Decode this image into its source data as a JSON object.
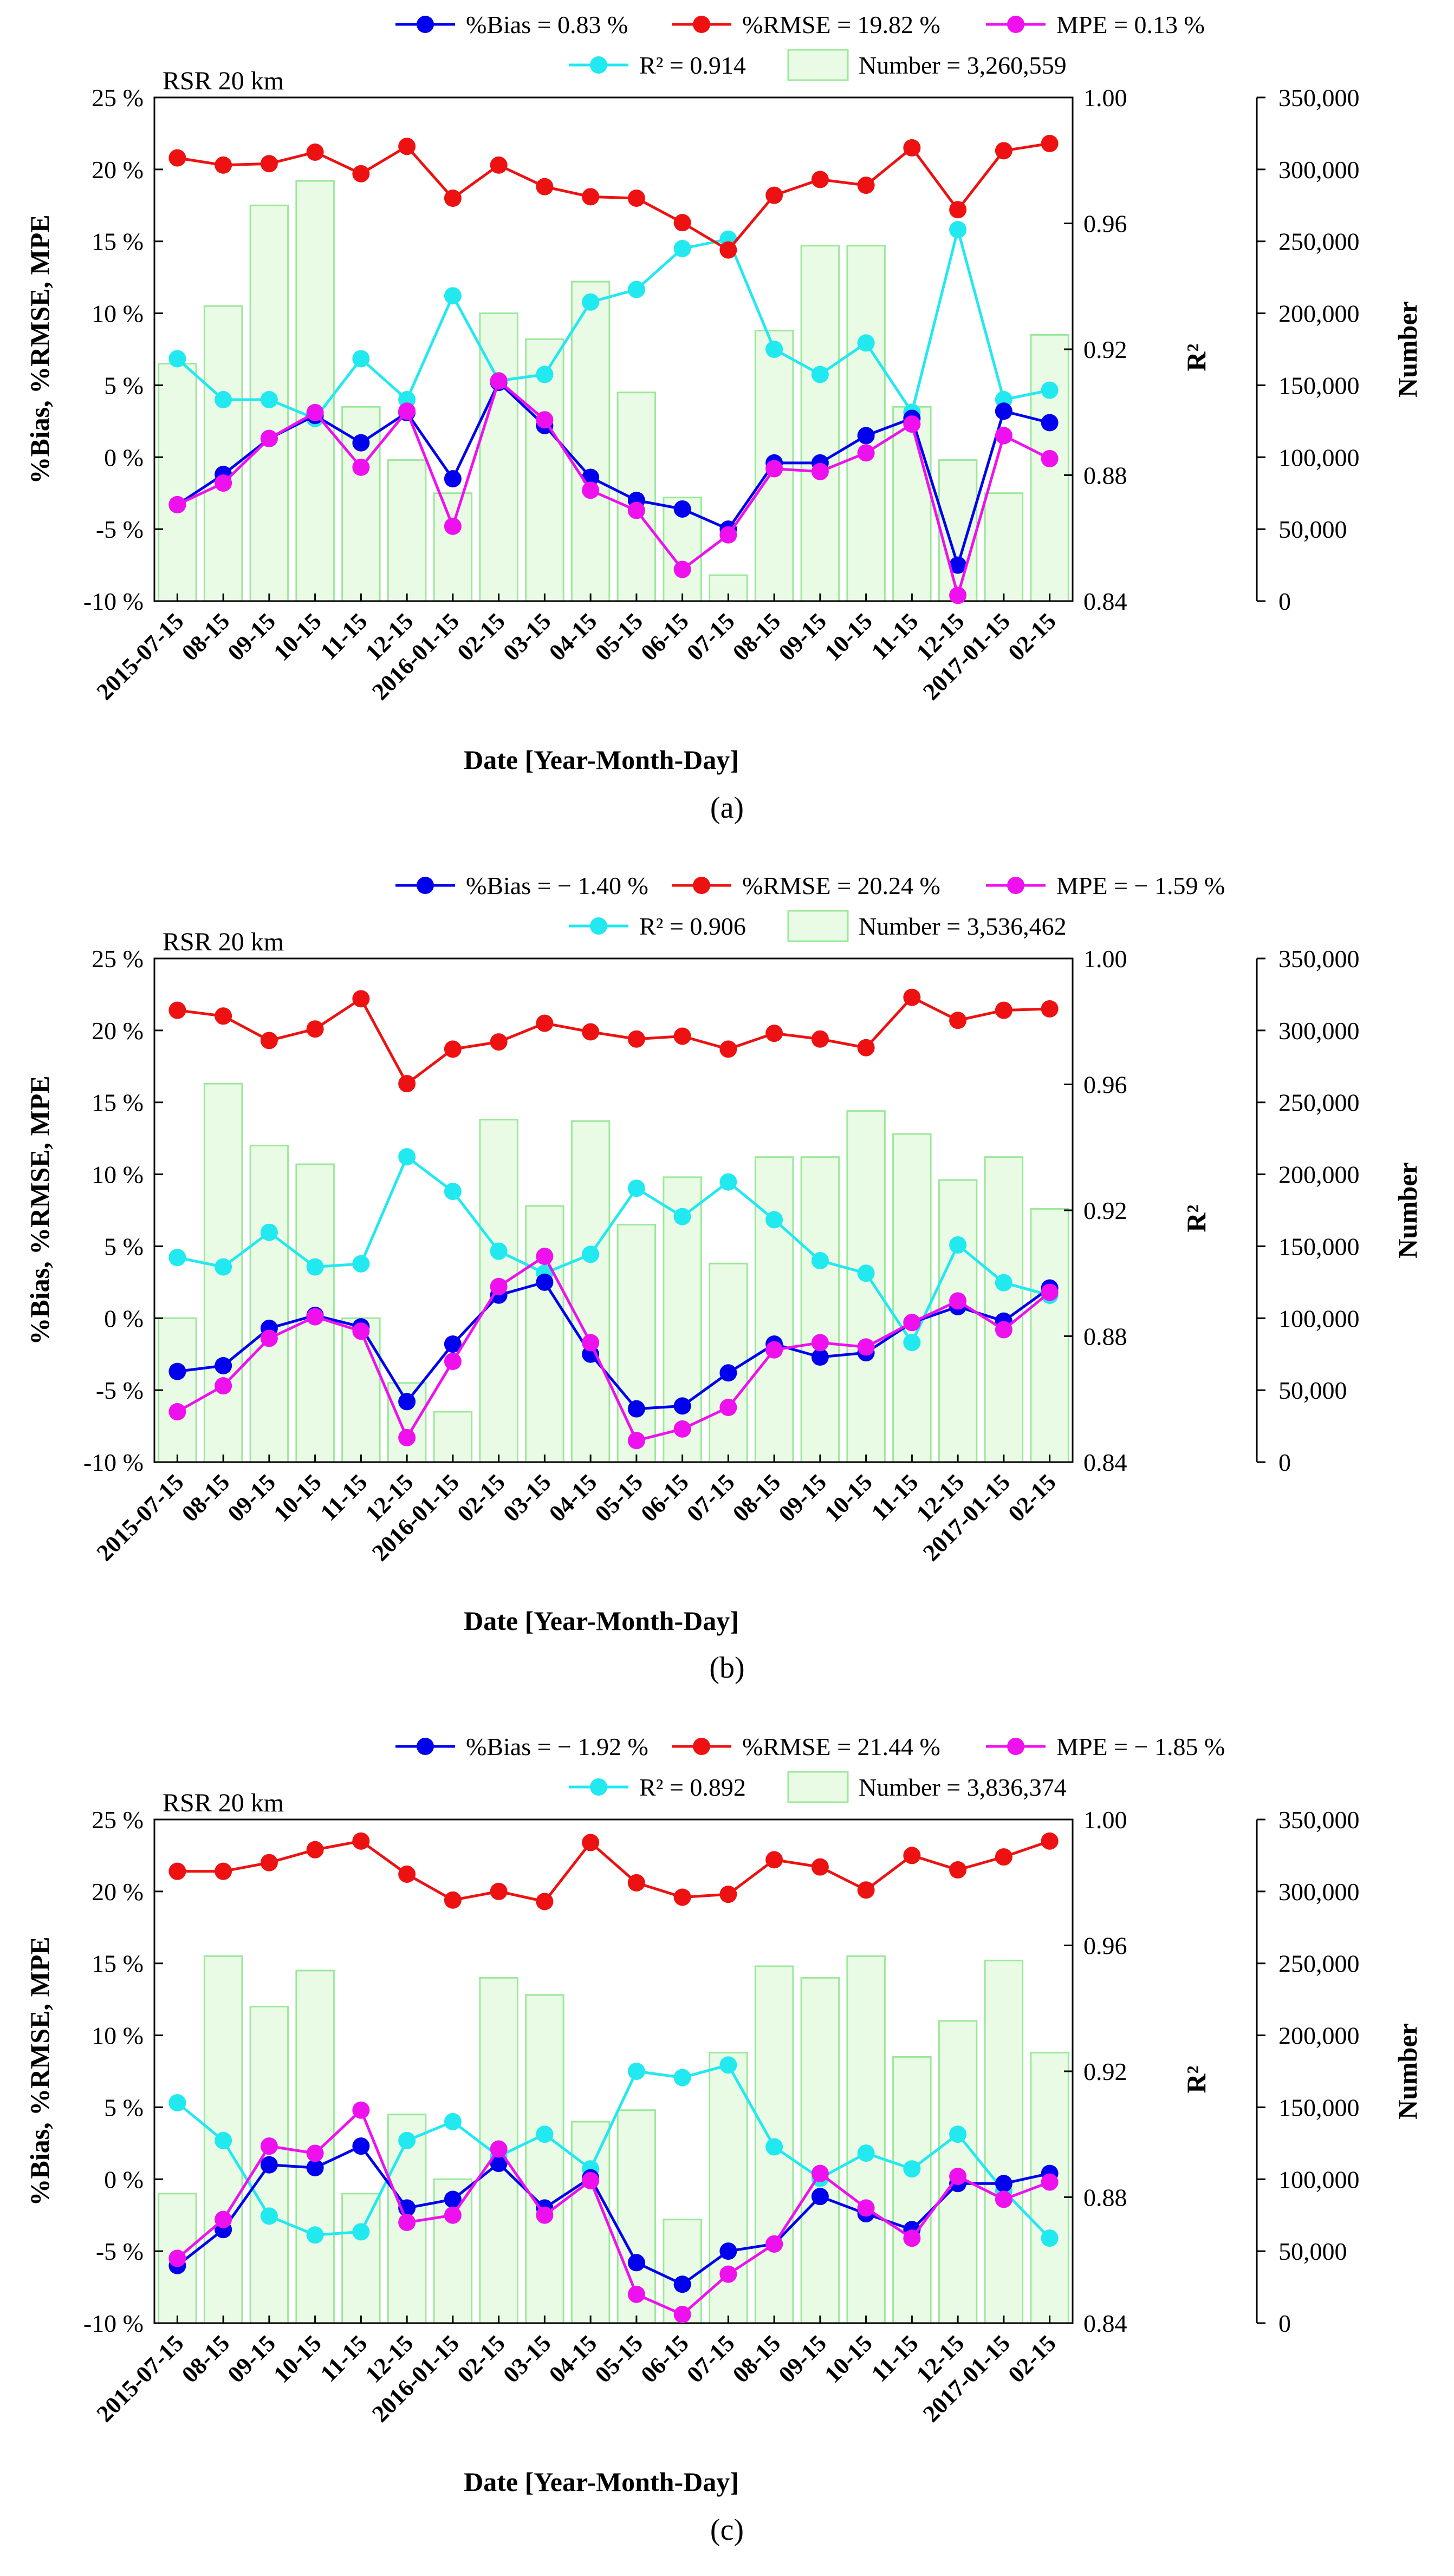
{
  "chart_data": [
    {
      "type": "line",
      "panel_label": "a",
      "annotation": "RSR  20 km",
      "legend": {
        "bias": "%Bias = 0.83 %",
        "rmse": "%RMSE = 19.82 %",
        "mpe": "MPE = 0.13 %",
        "r2": "R² = 0.914",
        "number": "Number = 3,260,559"
      },
      "xlabel": "Date  [Year-Month-Day]",
      "ylabel_left": "%Bias,  %RMSE,  MPE",
      "ylabel_r2": "R²",
      "ylabel_number": "Number",
      "categories": [
        "2015-07-15",
        "08-15",
        "09-15",
        "10-15",
        "11-15",
        "12-15",
        "2016-01-15",
        "02-15",
        "03-15",
        "04-15",
        "05-15",
        "06-15",
        "07-15",
        "08-15",
        "09-15",
        "10-15",
        "11-15",
        "12-15",
        "2017-01-15",
        "02-15"
      ],
      "left_ticks": [
        "-10 %",
        "-5 %",
        "0 %",
        "5 %",
        "10 %",
        "15 %",
        "20 %",
        "25 %"
      ],
      "r2_ticks": [
        "0.84",
        "0.88",
        "0.92",
        "0.96",
        "1.00"
      ],
      "number_ticks": [
        "0",
        "50,000",
        "100,000",
        "150,000",
        "200,000",
        "250,000",
        "300,000",
        "350,000"
      ],
      "ylim_left": [
        -10,
        25
      ],
      "ylim_r2": [
        0.84,
        1.0
      ],
      "ylim_number": [
        0,
        350000
      ],
      "colors": {
        "bias": "#0000ee",
        "rmse": "#ee1111",
        "mpe": "#ee11ee",
        "r2": "#22e8f0",
        "bars_edge": "#9be89b",
        "bars_fill": "#e9fbe4"
      },
      "series": [
        {
          "name": "%Bias",
          "axis": "left",
          "values": [
            -3.3,
            -1.2,
            1.3,
            2.9,
            1.0,
            3.1,
            -1.5,
            5.2,
            2.2,
            -1.4,
            -3.0,
            -3.6,
            -5.0,
            -0.4,
            -0.4,
            1.5,
            2.7,
            -7.5,
            3.2,
            2.4
          ]
        },
        {
          "name": "%RMSE",
          "axis": "left",
          "values": [
            20.8,
            20.3,
            20.4,
            21.2,
            19.7,
            21.6,
            18.0,
            20.3,
            18.8,
            18.1,
            18.0,
            16.3,
            14.4,
            18.2,
            19.3,
            18.9,
            21.5,
            17.2,
            21.3,
            21.8
          ]
        },
        {
          "name": "MPE",
          "axis": "left",
          "values": [
            -3.3,
            -1.8,
            1.3,
            3.1,
            -0.7,
            3.2,
            -4.8,
            5.3,
            2.6,
            -2.3,
            -3.7,
            -7.8,
            -5.4,
            -0.8,
            -1.0,
            0.3,
            2.3,
            -9.6,
            1.5,
            -0.1
          ]
        },
        {
          "name": "R²",
          "axis": "r2",
          "values": [
            0.917,
            0.904,
            0.904,
            0.898,
            0.917,
            0.904,
            0.937,
            0.91,
            0.912,
            0.935,
            0.939,
            0.952,
            0.955,
            0.92,
            0.912,
            0.922,
            0.9,
            0.958,
            0.904,
            0.907
          ]
        },
        {
          "name": "Number",
          "axis": "number",
          "type": "bar",
          "values": [
            165000,
            205000,
            275000,
            292000,
            135000,
            98000,
            75000,
            200000,
            182000,
            222000,
            145000,
            72000,
            18000,
            188000,
            247000,
            247000,
            135000,
            98000,
            75000,
            185000
          ]
        }
      ]
    },
    {
      "type": "line",
      "panel_label": "b",
      "annotation": "RSR  20 km",
      "legend": {
        "bias": "%Bias = − 1.40 %",
        "rmse": "%RMSE = 20.24 %",
        "mpe": "MPE = − 1.59 %",
        "r2": "R² = 0.906",
        "number": "Number = 3,536,462"
      },
      "xlabel": "Date  [Year-Month-Day]",
      "ylabel_left": "%Bias,  %RMSE,  MPE",
      "ylabel_r2": "R²",
      "ylabel_number": "Number",
      "categories": [
        "2015-07-15",
        "08-15",
        "09-15",
        "10-15",
        "11-15",
        "12-15",
        "2016-01-15",
        "02-15",
        "03-15",
        "04-15",
        "05-15",
        "06-15",
        "07-15",
        "08-15",
        "09-15",
        "10-15",
        "11-15",
        "12-15",
        "2017-01-15",
        "02-15"
      ],
      "left_ticks": [
        "-10 %",
        "-5 %",
        "0 %",
        "5 %",
        "10 %",
        "15 %",
        "20 %",
        "25 %"
      ],
      "r2_ticks": [
        "0.84",
        "0.88",
        "0.92",
        "0.96",
        "1.00"
      ],
      "number_ticks": [
        "0",
        "50,000",
        "100,000",
        "150,000",
        "200,000",
        "250,000",
        "300,000",
        "350,000"
      ],
      "ylim_left": [
        -10,
        25
      ],
      "ylim_r2": [
        0.84,
        1.0
      ],
      "ylim_number": [
        0,
        350000
      ],
      "colors": {
        "bias": "#0000ee",
        "rmse": "#ee1111",
        "mpe": "#ee11ee",
        "r2": "#22e8f0",
        "bars_edge": "#9be89b",
        "bars_fill": "#e9fbe4"
      },
      "series": [
        {
          "name": "%Bias",
          "axis": "left",
          "values": [
            -3.7,
            -3.3,
            -0.7,
            0.2,
            -0.6,
            -5.8,
            -1.8,
            1.6,
            2.5,
            -2.5,
            -6.3,
            -6.1,
            -3.8,
            -1.8,
            -2.7,
            -2.4,
            -0.3,
            0.8,
            -0.2,
            2.1
          ]
        },
        {
          "name": "%RMSE",
          "axis": "left",
          "values": [
            21.4,
            21.0,
            19.3,
            20.1,
            22.2,
            16.3,
            18.7,
            19.2,
            20.5,
            19.9,
            19.4,
            19.6,
            18.7,
            19.8,
            19.4,
            18.8,
            22.3,
            20.7,
            21.4,
            21.5
          ]
        },
        {
          "name": "MPE",
          "axis": "left",
          "values": [
            -6.5,
            -4.7,
            -1.4,
            0.1,
            -0.9,
            -8.3,
            -3.0,
            2.2,
            4.3,
            -1.7,
            -8.5,
            -7.7,
            -6.2,
            -2.2,
            -1.7,
            -2.0,
            -0.3,
            1.2,
            -0.8,
            1.8
          ]
        },
        {
          "name": "R²",
          "axis": "r2",
          "values": [
            0.905,
            0.902,
            0.913,
            0.902,
            0.903,
            0.937,
            0.926,
            0.907,
            0.9,
            0.906,
            0.927,
            0.918,
            0.929,
            0.917,
            0.904,
            0.9,
            0.878,
            0.909,
            0.897,
            0.893
          ]
        },
        {
          "name": "Number",
          "axis": "number",
          "type": "bar",
          "values": [
            100000,
            263000,
            220000,
            207000,
            100000,
            55000,
            35000,
            238000,
            178000,
            237000,
            165000,
            198000,
            138000,
            212000,
            212000,
            244000,
            228000,
            196000,
            212000,
            176000
          ]
        }
      ]
    },
    {
      "type": "line",
      "panel_label": "c",
      "annotation": "RSR  20 km",
      "legend": {
        "bias": "%Bias = − 1.92 %",
        "rmse": "%RMSE = 21.44 %",
        "mpe": "MPE = − 1.85 %",
        "r2": "R² = 0.892",
        "number": "Number = 3,836,374"
      },
      "xlabel": "Date  [Year-Month-Day]",
      "ylabel_left": "%Bias,  %RMSE,  MPE",
      "ylabel_r2": "R²",
      "ylabel_number": "Number",
      "categories": [
        "2015-07-15",
        "08-15",
        "09-15",
        "10-15",
        "11-15",
        "12-15",
        "2016-01-15",
        "02-15",
        "03-15",
        "04-15",
        "05-15",
        "06-15",
        "07-15",
        "08-15",
        "09-15",
        "10-15",
        "11-15",
        "12-15",
        "2017-01-15",
        "02-15"
      ],
      "left_ticks": [
        "-10 %",
        "-5 %",
        "0 %",
        "5 %",
        "10 %",
        "15 %",
        "20 %",
        "25 %"
      ],
      "r2_ticks": [
        "0.84",
        "0.88",
        "0.92",
        "0.96",
        "1.00"
      ],
      "number_ticks": [
        "0",
        "50,000",
        "100,000",
        "150,000",
        "200,000",
        "250,000",
        "300,000",
        "350,000"
      ],
      "ylim_left": [
        -10,
        25
      ],
      "ylim_r2": [
        0.84,
        1.0
      ],
      "ylim_number": [
        0,
        350000
      ],
      "colors": {
        "bias": "#0000ee",
        "rmse": "#ee1111",
        "mpe": "#ee11ee",
        "r2": "#22e8f0",
        "bars_edge": "#9be89b",
        "bars_fill": "#e9fbe4"
      },
      "series": [
        {
          "name": "%Bias",
          "axis": "left",
          "values": [
            -6.0,
            -3.5,
            1.0,
            0.8,
            2.3,
            -2.0,
            -1.4,
            1.1,
            -2.0,
            0.1,
            -5.8,
            -7.3,
            -5.0,
            -4.5,
            -1.2,
            -2.4,
            -3.5,
            -0.3,
            -0.3,
            0.4
          ]
        },
        {
          "name": "%RMSE",
          "axis": "left",
          "values": [
            21.4,
            21.4,
            22.0,
            22.9,
            23.5,
            21.2,
            19.4,
            20.0,
            19.3,
            23.4,
            20.6,
            19.6,
            19.8,
            22.2,
            21.7,
            20.1,
            22.5,
            21.5,
            22.4,
            23.5
          ]
        },
        {
          "name": "MPE",
          "axis": "left",
          "values": [
            -5.5,
            -2.8,
            2.3,
            1.8,
            4.8,
            -3.0,
            -2.5,
            2.1,
            -2.5,
            -0.1,
            -8.0,
            -9.4,
            -6.6,
            -4.5,
            0.4,
            -2.0,
            -4.1,
            0.2,
            -1.4,
            -0.2
          ]
        },
        {
          "name": "R²",
          "axis": "r2",
          "values": [
            0.91,
            0.898,
            0.874,
            0.868,
            0.869,
            0.898,
            0.904,
            0.893,
            0.9,
            0.889,
            0.92,
            0.918,
            0.922,
            0.896,
            0.886,
            0.894,
            0.889,
            0.9,
            0.882,
            0.867
          ]
        },
        {
          "name": "Number",
          "axis": "number",
          "type": "bar",
          "values": [
            90000,
            255000,
            220000,
            245000,
            90000,
            145000,
            100000,
            240000,
            228000,
            140000,
            148000,
            72000,
            188000,
            248000,
            240000,
            255000,
            185000,
            210000,
            252000,
            188000
          ]
        }
      ]
    }
  ],
  "panel_labels_text": [
    "(a)",
    "(b)",
    "(c)"
  ]
}
